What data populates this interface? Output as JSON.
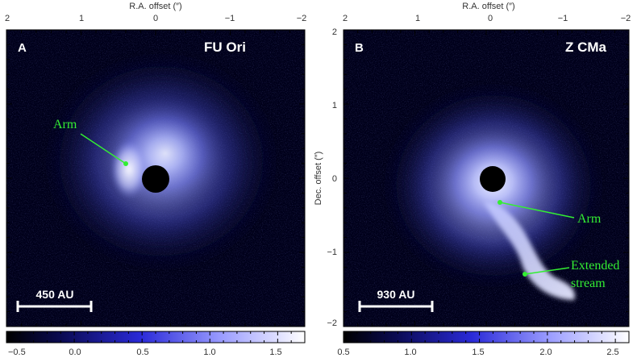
{
  "axes": {
    "ra_title": "R.A. offset (″)",
    "dec_title": "Dec. offset (″)",
    "ra_ticks": [
      "2",
      "1",
      "0",
      "−1",
      "−2"
    ],
    "dec_ticks": [
      "2",
      "1",
      "0",
      "−1",
      "−2"
    ]
  },
  "panels": [
    {
      "letter": "A",
      "name": "FU Ori",
      "scale_label": "450 AU",
      "annotations": [
        "Arm"
      ],
      "colorbar_ticks": [
        "−0.5",
        "0.0",
        "0.5",
        "1.0",
        "1.5"
      ]
    },
    {
      "letter": "B",
      "name": "Z CMa",
      "scale_label": "930 AU",
      "annotations": [
        "Arm",
        "Extended",
        "stream"
      ],
      "colorbar_ticks": [
        "0.5",
        "1.0",
        "1.5",
        "2.0",
        "2.5"
      ]
    }
  ],
  "colors": {
    "background": "#00001a",
    "glow": "#dde0ff",
    "annotation": "#33ee33",
    "text": "#ffffff",
    "colorbar_low": "#000000",
    "colorbar_mid": "#2a2ad8",
    "colorbar_high": "#ffffff"
  }
}
